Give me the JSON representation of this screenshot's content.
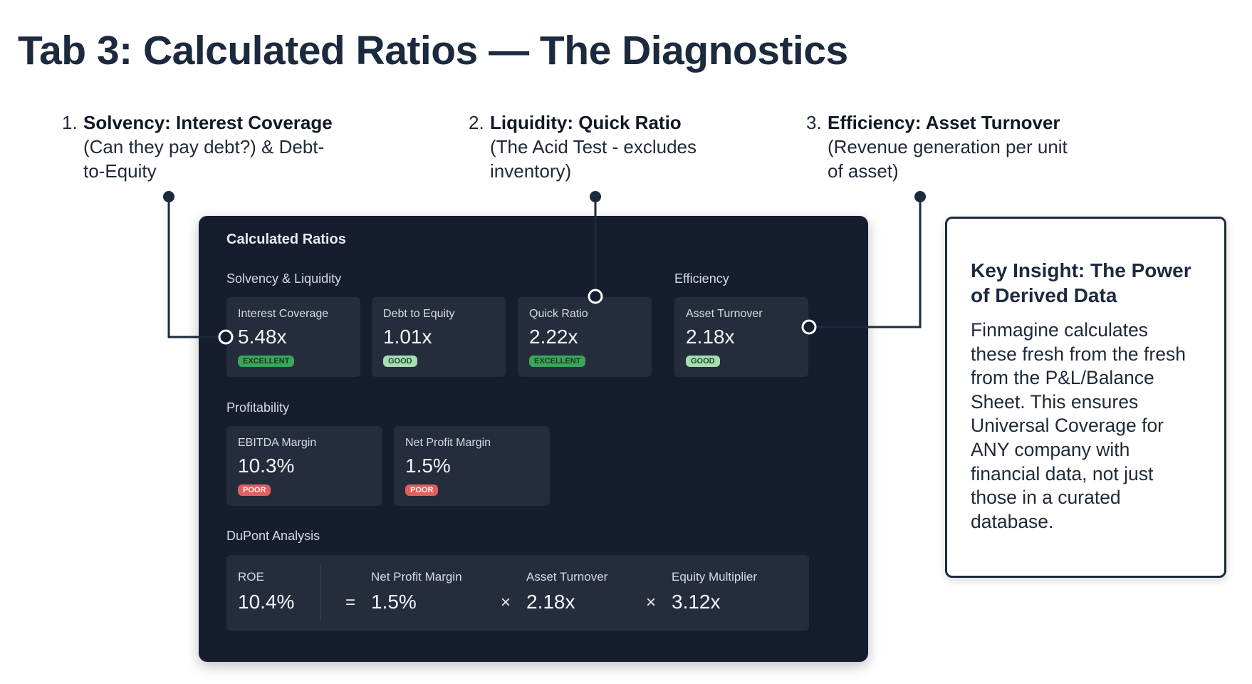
{
  "header": {
    "title": "Tab 3: Calculated Ratios — The Diagnostics"
  },
  "annotations": [
    {
      "number": "1.",
      "title": "Solvency: Interest Coverage",
      "description": "(Can they pay debt?) & Debt-to-Equity"
    },
    {
      "number": "2.",
      "title": "Liquidity: Quick Ratio",
      "description": "(The Acid Test - excludes inventory)"
    },
    {
      "number": "3.",
      "title": "Efficiency: Asset Turnover",
      "description": "(Revenue generation per unit of asset)"
    }
  ],
  "panel": {
    "title": "Calculated Ratios",
    "sections": [
      {
        "title": "Solvency & Liquidity",
        "cards": [
          {
            "label": "Interest Coverage",
            "value": "5.48x",
            "badge": "EXCELLENT"
          },
          {
            "label": "Debt to Equity",
            "value": "1.01x",
            "badge": "GOOD"
          },
          {
            "label": "Quick Ratio",
            "value": "2.22x",
            "badge": "EXCELLENT"
          }
        ]
      },
      {
        "title": "Efficiency",
        "cards": [
          {
            "label": "Asset Turnover",
            "value": "2.18x",
            "badge": "GOOD"
          }
        ]
      },
      {
        "title": "Profitability",
        "cards": [
          {
            "label": "EBITDA Margin",
            "value": "10.3%",
            "badge": "POOR"
          },
          {
            "label": "Net Profit Margin",
            "value": "1.5%",
            "badge": "POOR"
          }
        ]
      }
    ],
    "dupont": {
      "title": "DuPont Analysis",
      "items": [
        {
          "label": "ROE",
          "value": "10.4%"
        },
        {
          "operator": "=",
          "label": "Net Profit Margin",
          "value": "1.5%"
        },
        {
          "operator": "×",
          "label": "Asset Turnover",
          "value": "2.18x"
        },
        {
          "operator": "×",
          "label": "Equity Multiplier",
          "value": "3.12x"
        }
      ]
    }
  },
  "insight": {
    "title": "Key Insight: The Power of Derived Data",
    "body": "Finmagine calculates these fresh from the fresh from the P&L/Balance Sheet. This ensures Universal Coverage for ANY company with financial data, not just those in a curated database."
  }
}
